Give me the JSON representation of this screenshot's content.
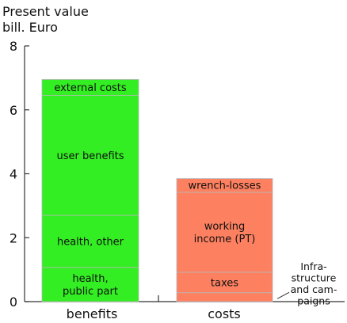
{
  "chart_data": {
    "type": "bar",
    "stacked": true,
    "ylabel_lines": [
      "Present value",
      "bill. Euro"
    ],
    "ylim": [
      0,
      8
    ],
    "yticks": [
      "0",
      "2",
      "4",
      "6",
      "8"
    ],
    "grid": false,
    "categories": [
      "benefits",
      "costs"
    ],
    "bars": [
      {
        "category": "benefits",
        "color": "#33ee22",
        "segments": [
          {
            "label_lines": [
              "health,",
              "public part"
            ],
            "value": 1.07
          },
          {
            "label_lines": [
              "health, other"
            ],
            "value": 1.63
          },
          {
            "label_lines": [
              "user benefits"
            ],
            "value": 3.75
          },
          {
            "label_lines": [
              "external costs"
            ],
            "value": 0.5
          }
        ]
      },
      {
        "category": "costs",
        "color": "#fd8060",
        "segments": [
          {
            "label_lines": [
              "Infra-",
              "structure",
              "and cam-",
              "paigns"
            ],
            "value": 0.28,
            "label_outside": true
          },
          {
            "label_lines": [
              "taxes"
            ],
            "value": 0.64
          },
          {
            "label_lines": [
              "working",
              "income (PT)"
            ],
            "value": 2.5
          },
          {
            "label_lines": [
              "wrench-losses"
            ],
            "value": 0.43
          }
        ]
      }
    ]
  }
}
